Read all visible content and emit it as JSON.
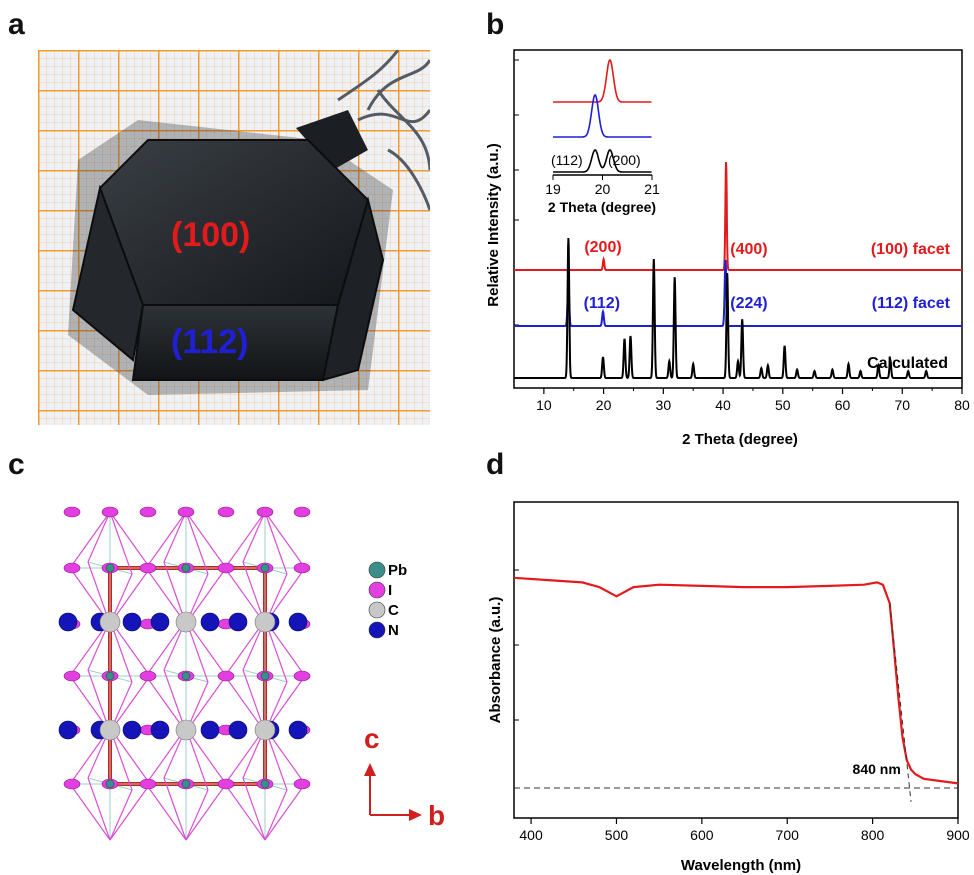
{
  "panels": {
    "a": {
      "label": "a",
      "facet_top": "(100)",
      "facet_bottom": "(112)",
      "colors": {
        "facet_top": "#e31a1c",
        "facet_bottom": "#1f1fd6",
        "grid": "#f39a2b",
        "crystal": "#1d2024"
      }
    },
    "b": {
      "label": "b",
      "colors": {
        "top": "#e31a1c",
        "middle": "#1f1fd6",
        "bottom": "#000000"
      }
    },
    "c": {
      "label": "c",
      "legend": [
        "Pb",
        "I",
        "C",
        "N"
      ],
      "legend_colors": [
        "#3b8f8b",
        "#e23ee0",
        "#c8c8c8",
        "#1414b8"
      ],
      "axis_c": "c",
      "axis_b": "b",
      "axis_color": "#d0201d"
    },
    "d": {
      "label": "d",
      "color": "#e31a1c"
    }
  },
  "chart_data": [
    {
      "panel": "b",
      "type": "line",
      "xlabel": "2 Theta (degree)",
      "ylabel": "Relative Intensity (a.u.)",
      "xlim": [
        5,
        80
      ],
      "xticks": [
        10,
        20,
        30,
        40,
        50,
        60,
        70,
        80
      ],
      "series": [
        {
          "name": "(100) facet",
          "peaks": [
            [
              20.0,
              0.1
            ],
            [
              40.5,
              1.0
            ]
          ],
          "peak_labels": [
            "(200)",
            "(400)"
          ]
        },
        {
          "name": "(112) facet",
          "peaks": [
            [
              14.1,
              0.35
            ],
            [
              19.9,
              0.12
            ],
            [
              40.4,
              0.55
            ]
          ],
          "peak_labels": [
            "(112)",
            "(224)"
          ]
        },
        {
          "name": "Calculated",
          "peaks": [
            [
              14.1,
              1.0
            ],
            [
              19.9,
              0.15
            ],
            [
              23.5,
              0.28
            ],
            [
              24.5,
              0.3
            ],
            [
              28.4,
              0.85
            ],
            [
              31.0,
              0.12
            ],
            [
              31.9,
              0.72
            ],
            [
              35.0,
              0.1
            ],
            [
              40.7,
              0.75
            ],
            [
              42.5,
              0.12
            ],
            [
              43.2,
              0.42
            ],
            [
              46.4,
              0.07
            ],
            [
              47.5,
              0.09
            ],
            [
              50.3,
              0.23
            ],
            [
              52.4,
              0.06
            ],
            [
              55.3,
              0.05
            ],
            [
              58.3,
              0.06
            ],
            [
              61.0,
              0.1
            ],
            [
              63.0,
              0.05
            ],
            [
              66.0,
              0.09
            ],
            [
              68.0,
              0.13
            ],
            [
              71.0,
              0.05
            ],
            [
              74.0,
              0.05
            ]
          ]
        }
      ],
      "inset": {
        "xlabel": "2 Theta (degree)",
        "xlim": [
          19,
          21
        ],
        "xticks": [
          19,
          20,
          21
        ],
        "peak_labels": [
          "(112)",
          "(200)"
        ],
        "series": [
          {
            "name": "(100) facet",
            "center": 20.15
          },
          {
            "name": "(112) facet",
            "center": 19.85
          },
          {
            "name": "Calculated",
            "centers": [
              19.85,
              20.15
            ]
          }
        ]
      }
    },
    {
      "panel": "d",
      "type": "line",
      "xlabel": "Wavelength (nm)",
      "ylabel": "Absorbance (a.u.)",
      "xlim": [
        380,
        900
      ],
      "xticks": [
        400,
        500,
        600,
        700,
        800,
        900
      ],
      "annotation": "840 nm",
      "series": [
        {
          "name": "Absorbance",
          "x": [
            380,
            420,
            460,
            480,
            500,
            520,
            550,
            600,
            650,
            700,
            750,
            790,
            805,
            812,
            820,
            825,
            830,
            835,
            840,
            845,
            850,
            860,
            880,
            900
          ],
          "y": [
            0.91,
            0.9,
            0.89,
            0.87,
            0.83,
            0.87,
            0.88,
            0.875,
            0.87,
            0.87,
            0.875,
            0.88,
            0.89,
            0.88,
            0.8,
            0.6,
            0.4,
            0.22,
            0.12,
            0.08,
            0.06,
            0.04,
            0.03,
            0.02
          ]
        }
      ]
    }
  ]
}
